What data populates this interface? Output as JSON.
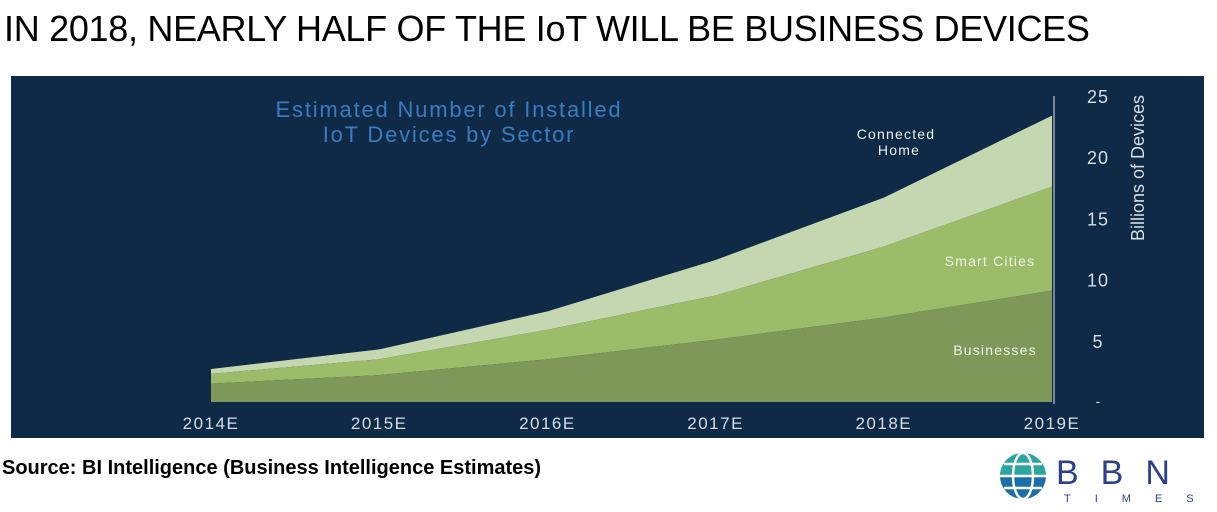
{
  "header": {
    "title": "IN 2018, NEARLY HALF OF THE IoT WILL BE BUSINESS DEVICES"
  },
  "chart_data": {
    "type": "area",
    "stacked": true,
    "title_lines": [
      "Estimated Number of Installed",
      "IoT Devices by Sector"
    ],
    "ylabel": "Billions of Devices",
    "xlabel": "",
    "x": [
      "2014E",
      "2015E",
      "2016E",
      "2017E",
      "2018E",
      "2019E"
    ],
    "ylim": [
      0,
      25
    ],
    "yticks": [
      5,
      10,
      15,
      20,
      25
    ],
    "y_zero_label": "-",
    "grid": false,
    "series": [
      {
        "name": "Businesses",
        "values": [
          1.5,
          2.2,
          3.5,
          5.1,
          6.9,
          9.1
        ],
        "color": "#7e985a"
      },
      {
        "name": "Smart Cities",
        "values": [
          0.8,
          1.3,
          2.4,
          3.6,
          5.8,
          8.5
        ],
        "color": "#9bbd6a"
      },
      {
        "name": "Connected Home",
        "values": [
          0.4,
          0.8,
          1.5,
          2.9,
          4.0,
          5.8
        ],
        "color": "#c5d7b0"
      }
    ],
    "series_labels": [
      {
        "lines": [
          "Businesses"
        ]
      },
      {
        "lines": [
          "Smart Cities"
        ]
      },
      {
        "lines": [
          "Connected",
          "Home"
        ]
      }
    ],
    "colors": {
      "background": "#0e2a47",
      "title": "#3a7cc0",
      "tick": "#d7dde4",
      "label_text": "#eef2e8"
    }
  },
  "footer": {
    "source": "Source: BI Intelligence (Business Intelligence Estimates)",
    "brand_name": "BBN",
    "brand_tagline": "TIMES"
  }
}
